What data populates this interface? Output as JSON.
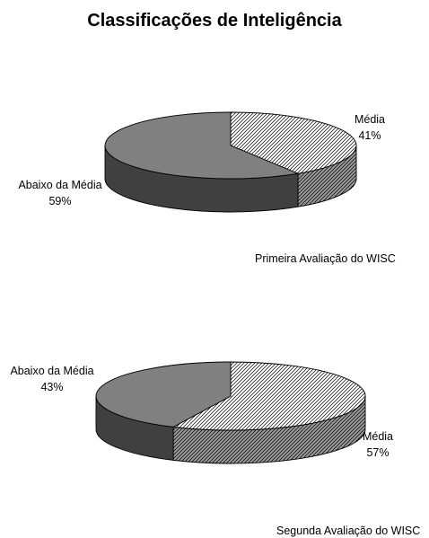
{
  "title": "Classificações de Inteligência",
  "chart_data": [
    {
      "type": "pie",
      "three_d": true,
      "legend": false,
      "unit": "%",
      "caption": "Primeira Avaliação do WISC",
      "slices": [
        {
          "label": "Média",
          "value": 41,
          "color": "#ffffff",
          "hatch": true
        },
        {
          "label": "Abaixo da Média",
          "value": 59,
          "color": "#808080"
        }
      ]
    },
    {
      "type": "pie",
      "three_d": true,
      "legend": false,
      "unit": "%",
      "caption": "Segunda Avaliação do WISC",
      "slices": [
        {
          "label": "Média",
          "value": 57,
          "color": "#ffffff",
          "hatch": true
        },
        {
          "label": "Abaixo da Média",
          "value": 43,
          "color": "#808080"
        }
      ]
    }
  ]
}
